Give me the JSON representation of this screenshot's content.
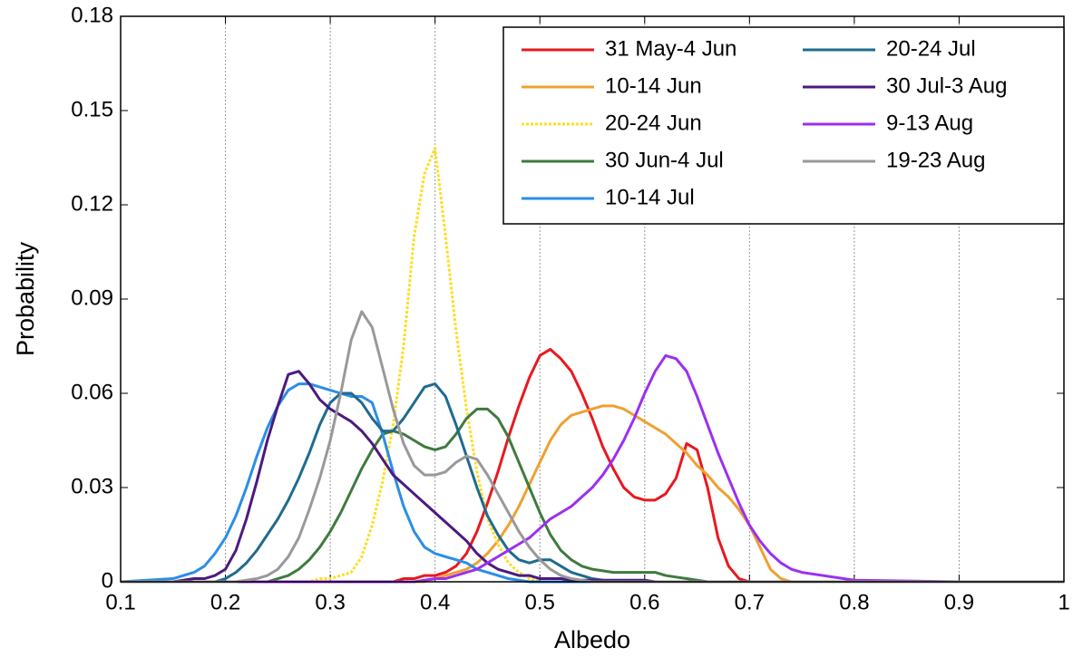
{
  "chart_data": {
    "type": "line",
    "xlabel": "Albedo",
    "ylabel": "Probability",
    "xlim": [
      0.1,
      1
    ],
    "ylim": [
      0,
      0.18
    ],
    "xticks": [
      0.1,
      0.2,
      0.3,
      0.4,
      0.5,
      0.6,
      0.7,
      0.8,
      0.9,
      1
    ],
    "yticks": [
      0,
      0.03,
      0.06,
      0.09,
      0.12,
      0.15,
      0.18
    ],
    "grid": "x",
    "legend": "upper right",
    "x": [
      0.1,
      0.15,
      0.16,
      0.17,
      0.18,
      0.19,
      0.2,
      0.21,
      0.22,
      0.23,
      0.24,
      0.25,
      0.26,
      0.27,
      0.28,
      0.29,
      0.3,
      0.31,
      0.32,
      0.33,
      0.34,
      0.35,
      0.36,
      0.37,
      0.38,
      0.39,
      0.4,
      0.41,
      0.42,
      0.43,
      0.44,
      0.45,
      0.46,
      0.47,
      0.48,
      0.49,
      0.5,
      0.51,
      0.52,
      0.53,
      0.54,
      0.55,
      0.56,
      0.57,
      0.58,
      0.59,
      0.6,
      0.61,
      0.62,
      0.63,
      0.64,
      0.65,
      0.66,
      0.67,
      0.68,
      0.69,
      0.7,
      0.71,
      0.72,
      0.73,
      0.74,
      0.75,
      0.8,
      0.9,
      1
    ],
    "series": [
      {
        "name": "31 May-4 Jun",
        "color": "#e8191f",
        "linestyle": "solid",
        "values": [
          0,
          0,
          0,
          0,
          0,
          0,
          0,
          0,
          0,
          0,
          0,
          0,
          0,
          0,
          0,
          0,
          0,
          0,
          0,
          0,
          0,
          0,
          0,
          0.001,
          0.001,
          0.002,
          0.002,
          0.003,
          0.005,
          0.009,
          0.016,
          0.025,
          0.035,
          0.046,
          0.056,
          0.065,
          0.072,
          0.074,
          0.071,
          0.067,
          0.06,
          0.052,
          0.043,
          0.036,
          0.03,
          0.027,
          0.026,
          0.026,
          0.028,
          0.033,
          0.044,
          0.042,
          0.03,
          0.014,
          0.005,
          0.001,
          0,
          0,
          0,
          0,
          0,
          0,
          0,
          0,
          0
        ]
      },
      {
        "name": "10-14 Jun",
        "color": "#f0a030",
        "linestyle": "solid",
        "values": [
          0,
          0,
          0,
          0,
          0,
          0,
          0,
          0,
          0,
          0,
          0,
          0,
          0,
          0,
          0,
          0,
          0,
          0,
          0,
          0,
          0,
          0,
          0,
          0,
          0,
          0,
          0.001,
          0.002,
          0.003,
          0.004,
          0.006,
          0.009,
          0.013,
          0.018,
          0.024,
          0.031,
          0.038,
          0.045,
          0.05,
          0.053,
          0.054,
          0.055,
          0.056,
          0.056,
          0.055,
          0.053,
          0.051,
          0.049,
          0.047,
          0.044,
          0.041,
          0.037,
          0.034,
          0.03,
          0.027,
          0.023,
          0.018,
          0.011,
          0.004,
          0.001,
          0,
          0,
          0,
          0,
          0
        ]
      },
      {
        "name": "20-24 Jun",
        "color": "#ffdd22",
        "linestyle": "dotted",
        "values": [
          0,
          0,
          0,
          0,
          0,
          0,
          0,
          0,
          0,
          0,
          0,
          0,
          0,
          0,
          0,
          0.001,
          0.001,
          0.002,
          0.003,
          0.008,
          0.018,
          0.032,
          0.05,
          0.075,
          0.11,
          0.13,
          0.138,
          0.11,
          0.08,
          0.055,
          0.035,
          0.02,
          0.012,
          0.006,
          0.003,
          0.001,
          0,
          0,
          0,
          0,
          0,
          0,
          0,
          0,
          0,
          0,
          0,
          0,
          0,
          0,
          0,
          0,
          0,
          0,
          0,
          0,
          0,
          0,
          0,
          0,
          0,
          0,
          0,
          0,
          0
        ]
      },
      {
        "name": "30 Jun-4 Jul",
        "color": "#3f7a3f",
        "linestyle": "solid",
        "values": [
          0,
          0,
          0,
          0,
          0,
          0,
          0,
          0,
          0,
          0,
          0,
          0.001,
          0.002,
          0.004,
          0.007,
          0.011,
          0.016,
          0.022,
          0.029,
          0.036,
          0.042,
          0.047,
          0.048,
          0.047,
          0.045,
          0.043,
          0.042,
          0.043,
          0.047,
          0.052,
          0.055,
          0.055,
          0.052,
          0.046,
          0.038,
          0.03,
          0.022,
          0.015,
          0.01,
          0.007,
          0.005,
          0.004,
          0.0035,
          0.003,
          0.003,
          0.003,
          0.003,
          0.003,
          0.002,
          0.0015,
          0.001,
          0.0005,
          0,
          0,
          0,
          0,
          0,
          0,
          0,
          0,
          0,
          0,
          0,
          0,
          0
        ]
      },
      {
        "name": "10-14 Jul",
        "color": "#2a8ee8",
        "linestyle": "solid",
        "values": [
          0,
          0.001,
          0.002,
          0.003,
          0.005,
          0.009,
          0.014,
          0.021,
          0.03,
          0.04,
          0.049,
          0.056,
          0.061,
          0.063,
          0.063,
          0.062,
          0.061,
          0.06,
          0.059,
          0.059,
          0.057,
          0.047,
          0.035,
          0.024,
          0.016,
          0.011,
          0.009,
          0.008,
          0.007,
          0.006,
          0.004,
          0.003,
          0.002,
          0.001,
          0.0005,
          0,
          0,
          0,
          0,
          0,
          0,
          0,
          0,
          0,
          0,
          0,
          0,
          0,
          0,
          0,
          0,
          0,
          0,
          0,
          0,
          0,
          0,
          0,
          0,
          0,
          0,
          0,
          0,
          0,
          0
        ]
      },
      {
        "name": "20-24 Jul",
        "color": "#1f6b8f",
        "linestyle": "solid",
        "values": [
          0,
          0,
          0,
          0,
          0,
          0,
          0.001,
          0.003,
          0.006,
          0.01,
          0.015,
          0.02,
          0.026,
          0.033,
          0.041,
          0.05,
          0.057,
          0.06,
          0.06,
          0.057,
          0.052,
          0.048,
          0.048,
          0.052,
          0.057,
          0.062,
          0.063,
          0.059,
          0.05,
          0.04,
          0.03,
          0.021,
          0.015,
          0.01,
          0.007,
          0.006,
          0.007,
          0.007,
          0.005,
          0.003,
          0.002,
          0.001,
          0.0005,
          0,
          0,
          0,
          0,
          0,
          0,
          0,
          0,
          0,
          0,
          0,
          0,
          0,
          0,
          0,
          0,
          0,
          0,
          0,
          0,
          0,
          0
        ]
      },
      {
        "name": "30 Jul-3 Aug",
        "color": "#4b1a80",
        "linestyle": "solid",
        "values": [
          0,
          0,
          0.0005,
          0.001,
          0.001,
          0.002,
          0.004,
          0.01,
          0.02,
          0.032,
          0.045,
          0.056,
          0.066,
          0.067,
          0.063,
          0.058,
          0.055,
          0.053,
          0.051,
          0.048,
          0.044,
          0.039,
          0.034,
          0.031,
          0.028,
          0.025,
          0.022,
          0.019,
          0.016,
          0.013,
          0.009,
          0.006,
          0.004,
          0.003,
          0.002,
          0.002,
          0.001,
          0.001,
          0.001,
          0.0005,
          0.0005,
          0.0005,
          0.0005,
          0.0005,
          0.0005,
          0.0005,
          0.0005,
          0,
          0,
          0,
          0,
          0,
          0,
          0,
          0,
          0,
          0,
          0,
          0,
          0,
          0,
          0,
          0,
          0,
          0
        ]
      },
      {
        "name": "9-13 Aug",
        "color": "#9b30f0",
        "linestyle": "solid",
        "values": [
          0,
          0,
          0,
          0,
          0,
          0,
          0,
          0,
          0,
          0,
          0,
          0,
          0,
          0,
          0,
          0,
          0,
          0,
          0,
          0,
          0,
          0,
          0,
          0,
          0,
          0.0005,
          0.001,
          0.001,
          0.002,
          0.003,
          0.004,
          0.006,
          0.008,
          0.01,
          0.012,
          0.014,
          0.017,
          0.02,
          0.022,
          0.024,
          0.027,
          0.03,
          0.034,
          0.039,
          0.045,
          0.052,
          0.06,
          0.067,
          0.072,
          0.071,
          0.067,
          0.059,
          0.05,
          0.041,
          0.033,
          0.025,
          0.018,
          0.013,
          0.009,
          0.006,
          0.004,
          0.003,
          0.0005,
          0,
          0
        ]
      },
      {
        "name": "19-23 Aug",
        "color": "#999999",
        "linestyle": "solid",
        "values": [
          0,
          0,
          0,
          0,
          0,
          0,
          0,
          0,
          0.0005,
          0.001,
          0.002,
          0.004,
          0.008,
          0.014,
          0.023,
          0.033,
          0.045,
          0.06,
          0.077,
          0.086,
          0.081,
          0.068,
          0.055,
          0.044,
          0.037,
          0.034,
          0.034,
          0.035,
          0.038,
          0.04,
          0.039,
          0.034,
          0.028,
          0.022,
          0.016,
          0.011,
          0.007,
          0.004,
          0.002,
          0.001,
          0.0005,
          0,
          0,
          0,
          0,
          0,
          0,
          0,
          0,
          0,
          0,
          0,
          0,
          0,
          0,
          0,
          0,
          0,
          0,
          0,
          0,
          0,
          0,
          0,
          0
        ]
      }
    ]
  }
}
